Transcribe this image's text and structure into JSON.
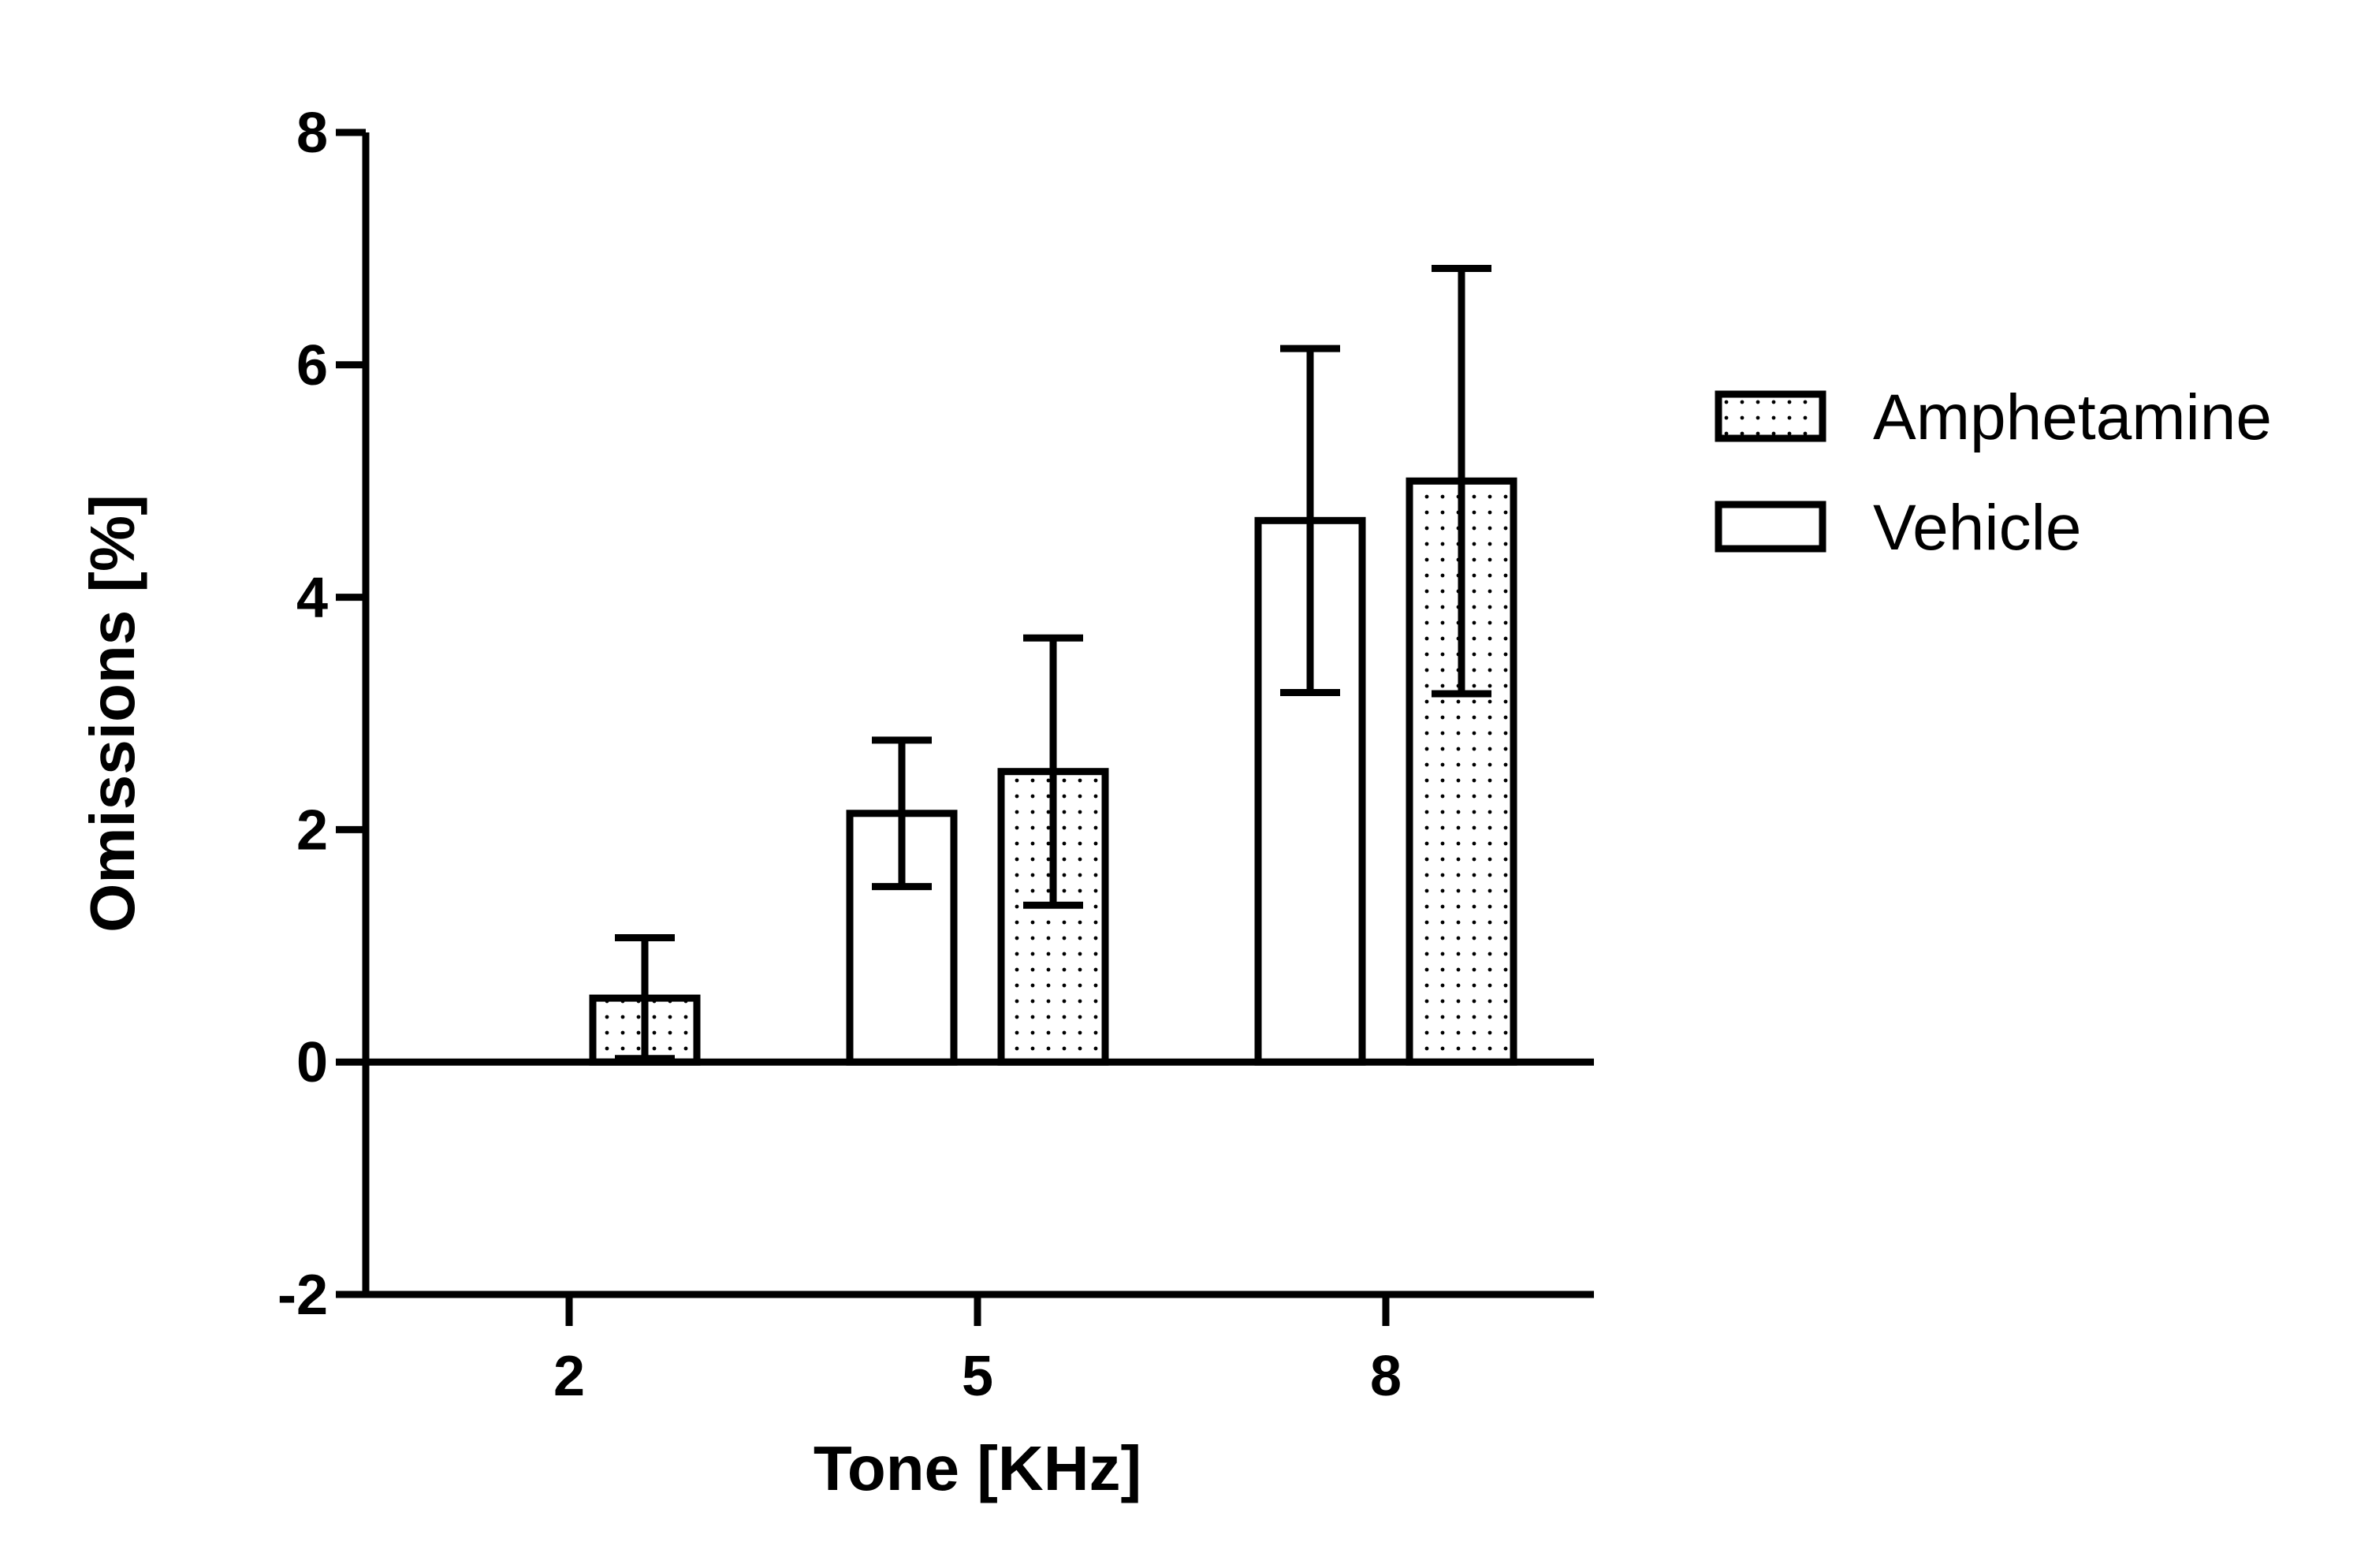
{
  "chart_data": {
    "type": "bar",
    "title": "",
    "xlabel": "Tone [KHz]",
    "ylabel": "Omissions [%]",
    "categories": [
      "2",
      "5",
      "8"
    ],
    "ylim": [
      -2,
      8
    ],
    "yticks": [
      "-2",
      "0",
      "2",
      "4",
      "6",
      "8"
    ],
    "grid": false,
    "legend_position": "right",
    "series": [
      {
        "name": "Vehicle",
        "pattern": "none",
        "values": [
          0,
          2.14,
          4.66
        ],
        "errors": [
          0,
          0.63,
          1.48
        ]
      },
      {
        "name": "Amphetamine",
        "pattern": "dotted",
        "values": [
          0.55,
          2.5,
          5.0
        ],
        "errors": [
          0.52,
          1.15,
          1.83
        ]
      }
    ],
    "legend": [
      "Amphetamine",
      "Vehicle"
    ],
    "colors": {
      "stroke": "#000000",
      "fill": "#ffffff",
      "dots": "#000000"
    }
  }
}
